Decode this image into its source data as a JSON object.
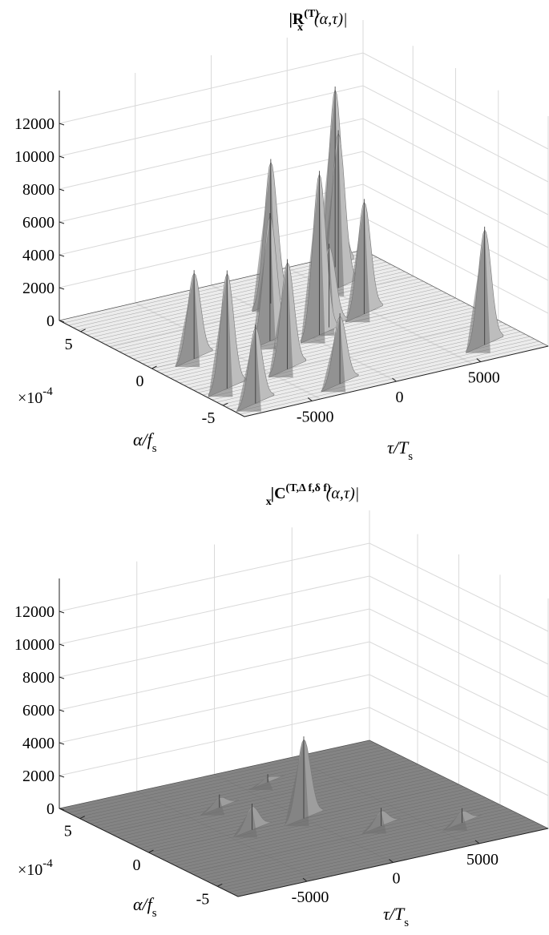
{
  "chart_data": [
    {
      "type": "surface",
      "panel": "top",
      "title": {
        "main": "|R",
        "sup": "(T)",
        "sub": "x",
        "args": "(α,τ)|"
      },
      "xlabel": {
        "main": "τ/T",
        "sub": "s"
      },
      "ylabel": {
        "main": "α/f",
        "sub": "s"
      },
      "zlim": [
        0,
        14000
      ],
      "z_ticks": [
        "0",
        "2000",
        "4000",
        "6000",
        "8000",
        "10000",
        "12000"
      ],
      "tau_ticks": [
        "-5000",
        "0",
        "5000"
      ],
      "alpha_ticks": [
        "5",
        "0",
        "-5"
      ],
      "alpha_multiplier": {
        "base": "×10",
        "exp": "-4"
      },
      "grid": true,
      "color": "#bdbdbd",
      "peaks": [
        {
          "alpha": -5.5,
          "tau": -7500,
          "z": 4600
        },
        {
          "alpha": -5.5,
          "tau": -2500,
          "z": 4100
        },
        {
          "alpha": -3.5,
          "tau": -7500,
          "z": 7000
        },
        {
          "alpha": -3.0,
          "tau": -3500,
          "z": 6500
        },
        {
          "alpha": 0,
          "tau": -6500,
          "z": 5200
        },
        {
          "alpha": 0,
          "tau": -2000,
          "z": 7600
        },
        {
          "alpha": 0,
          "tau": 1500,
          "z": 4900
        },
        {
          "alpha": -0.5,
          "tau": 500,
          "z": 9800
        },
        {
          "alpha": 0.5,
          "tau": 4000,
          "z": 6800
        },
        {
          "alpha": 3.5,
          "tau": 1000,
          "z": 8600
        },
        {
          "alpha": 3.5,
          "tau": 5000,
          "z": 9400
        },
        {
          "alpha": 5.5,
          "tau": 6500,
          "z": 10800
        },
        {
          "alpha": -5.0,
          "tau": 6500,
          "z": 7000
        }
      ]
    },
    {
      "type": "surface",
      "panel": "bottom",
      "title": {
        "main": "|C",
        "sup": "(T,Δ f,δ f)",
        "sub": "x",
        "args": "(α,τ)|"
      },
      "xlabel": {
        "main": "τ/T",
        "sub": "s"
      },
      "ylabel": {
        "main": "α/f",
        "sub": "s"
      },
      "zlim": [
        0,
        14000
      ],
      "z_ticks": [
        "0",
        "2000",
        "4000",
        "6000",
        "8000",
        "10000",
        "12000"
      ],
      "tau_ticks": [
        "-5000",
        "0",
        "5000"
      ],
      "alpha_ticks": [
        "5",
        "0",
        "-5"
      ],
      "alpha_multiplier": {
        "base": "×10",
        "exp": "-4"
      },
      "grid": true,
      "color": "#9e9e9e",
      "peaks": [
        {
          "alpha": 0,
          "tau": 0,
          "z": 4800
        },
        {
          "alpha": 0,
          "tau": -3000,
          "z": 1400
        },
        {
          "alpha": -2.5,
          "tau": 2500,
          "z": 900
        },
        {
          "alpha": -4.0,
          "tau": 6000,
          "z": 700
        },
        {
          "alpha": 3.0,
          "tau": -2500,
          "z": 600
        },
        {
          "alpha": 4.5,
          "tau": 1500,
          "z": 300
        }
      ]
    }
  ]
}
